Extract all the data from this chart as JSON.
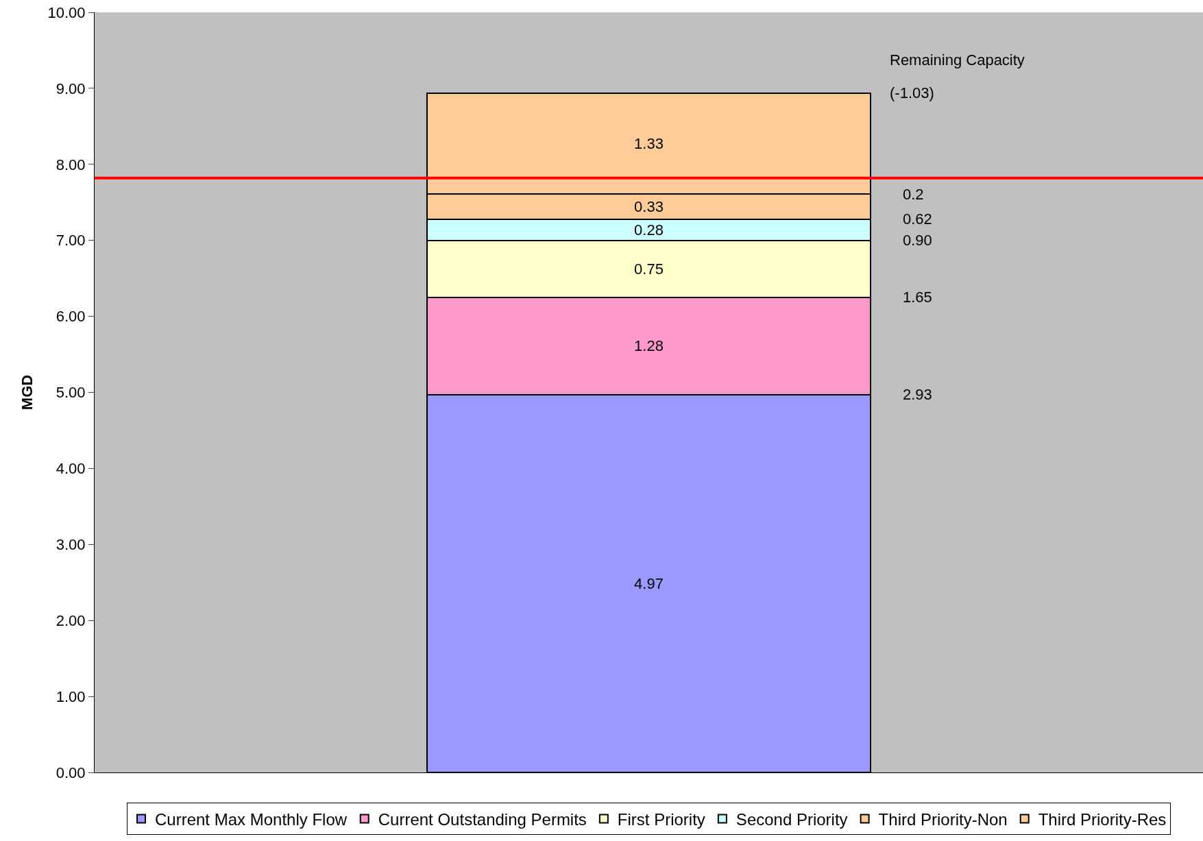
{
  "chart_data": {
    "type": "bar",
    "stacked": true,
    "ylabel": "MGD",
    "categories": [
      null
    ],
    "series": [
      {
        "name": "Current Max Monthly Flow",
        "color": "#9999ff",
        "values": [
          4.97
        ]
      },
      {
        "name": "Current Outstanding Permits",
        "color": "#ff99cc",
        "values": [
          1.28
        ]
      },
      {
        "name": "First Priority",
        "color": "#ffffcc",
        "values": [
          0.75
        ]
      },
      {
        "name": "Second Priority",
        "color": "#ccffff",
        "values": [
          0.28
        ]
      },
      {
        "name": "Third Priority-Non",
        "color": "#ffcc99",
        "values": [
          0.33
        ]
      },
      {
        "name": "Third Priority-Res",
        "color": "#ffcc99",
        "values": [
          1.33
        ]
      }
    ],
    "data_labels": true,
    "ylim": [
      0,
      10
    ],
    "yticks": [
      {
        "value": 0,
        "label": "0.00"
      },
      {
        "value": 1,
        "label": "1.00"
      },
      {
        "value": 2,
        "label": "2.00"
      },
      {
        "value": 3,
        "label": "3.00"
      },
      {
        "value": 4,
        "label": "4.00"
      },
      {
        "value": 5,
        "label": "5.00"
      },
      {
        "value": 6,
        "label": "6.00"
      },
      {
        "value": 7,
        "label": "7.00"
      },
      {
        "value": 8,
        "label": "8.00"
      },
      {
        "value": 9,
        "label": "9.00"
      },
      {
        "value": 10,
        "label": "10.00"
      }
    ],
    "ref_lines": [
      {
        "axis": "y",
        "value": 7.82,
        "color": "#ff0000"
      }
    ],
    "annotations": [
      "Remaining Capacity",
      "(-1.03)",
      "0.2",
      "0.62",
      "0.90",
      "1.65",
      "2.93"
    ],
    "grid": false,
    "legend": "bottom"
  }
}
